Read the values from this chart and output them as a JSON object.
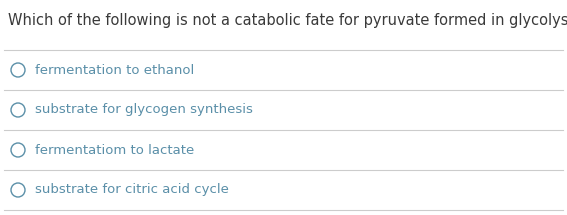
{
  "question": "Which of the following is not a catabolic fate for pyruvate formed in glycolysis?",
  "question_color": "#3a3a3a",
  "options": [
    "fermentation to ethanol",
    "substrate for glycogen synthesis",
    "fermentatiom to lactate",
    "substrate for citric acid cycle"
  ],
  "option_color": "#5a8fa8",
  "background_color": "#ffffff",
  "line_color": "#cccccc",
  "circle_color": "#5a8fa8",
  "question_fontsize": 10.5,
  "option_fontsize": 9.5,
  "fig_width": 5.67,
  "fig_height": 2.15,
  "dpi": 100
}
